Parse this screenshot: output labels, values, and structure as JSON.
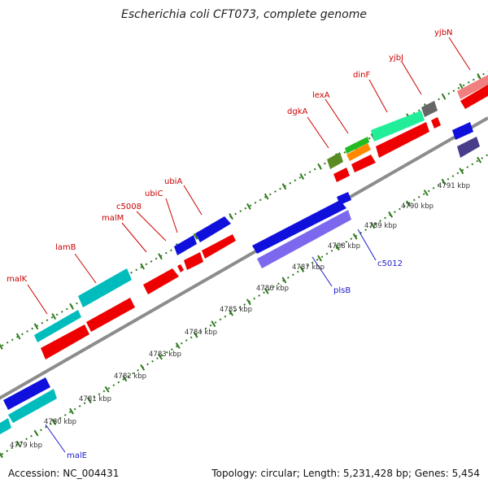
{
  "title": "Escherichia coli CFT073, complete genome",
  "footer": {
    "accession": "Accession: NC_004431",
    "stats": "Topology: circular; Length: 5,231,428 bp; Genes: 5,454"
  },
  "colors": {
    "backbone": "#8c8c8c",
    "tick_green": "#2f7a1f",
    "label_red": "#cc0000",
    "label_blue": "#1a1acc",
    "kbp_text": "#333333"
  },
  "kbp_labels": [
    {
      "label": "4779 kbp"
    },
    {
      "label": "4780 kbp"
    },
    {
      "label": "4781 kbp"
    },
    {
      "label": "4782 kbp"
    },
    {
      "label": "4783 kbp"
    },
    {
      "label": "4784 kbp"
    },
    {
      "label": "4785 kbp"
    },
    {
      "label": "4786 kbp"
    },
    {
      "label": "4787 kbp"
    },
    {
      "label": "4788 kbp"
    },
    {
      "label": "4789 kbp"
    },
    {
      "label": "4790 kbp"
    },
    {
      "label": "4791 kbp"
    }
  ],
  "gene_labels": [
    {
      "label": "malK",
      "color": "#cc0000"
    },
    {
      "label": "lamB",
      "color": "#cc0000"
    },
    {
      "label": "malM",
      "color": "#cc0000"
    },
    {
      "label": "c5008",
      "color": "#cc0000"
    },
    {
      "label": "ubiC",
      "color": "#cc0000"
    },
    {
      "label": "ubiA",
      "color": "#cc0000"
    },
    {
      "label": "dgkA",
      "color": "#cc0000"
    },
    {
      "label": "lexA",
      "color": "#cc0000"
    },
    {
      "label": "dinF",
      "color": "#cc0000"
    },
    {
      "label": "yjbJ",
      "color": "#cc0000"
    },
    {
      "label": "yjbN",
      "color": "#cc0000"
    },
    {
      "label": "malE",
      "color": "#1a1acc"
    },
    {
      "label": "plsB",
      "color": "#1a1acc"
    },
    {
      "label": "c5012",
      "color": "#1a1acc"
    }
  ]
}
